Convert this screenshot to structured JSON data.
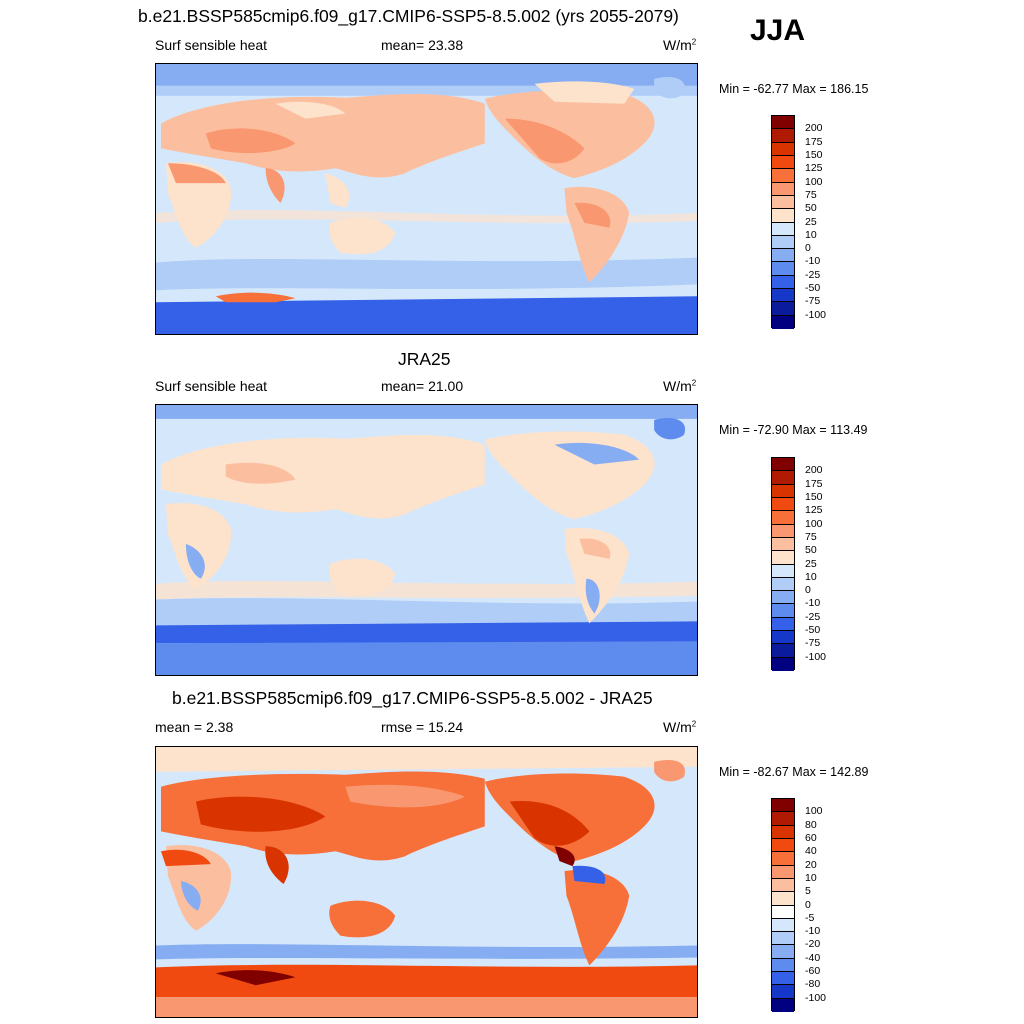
{
  "season": "JJA",
  "panels": [
    {
      "title": "b.e21.BSSP585cmip6.f09_g17.CMIP6-SSP5-8.5.002 (yrs 2055-2079)",
      "left_label": "Surf sensible heat",
      "center_label": "mean=  23.38",
      "units": "W/m",
      "units_sup": "2",
      "minmax": "Min = -62.77 Max = 186.15",
      "colorbar": {
        "ticks": [
          "200",
          "175",
          "150",
          "125",
          "100",
          "75",
          "50",
          "25",
          "10",
          "0",
          "-10",
          "-25",
          "-50",
          "-75",
          "-100"
        ],
        "colors": [
          "#800000",
          "#b01a00",
          "#d93300",
          "#f04a10",
          "#f7703a",
          "#f99870",
          "#fbbf9f",
          "#fde2cc",
          "#d5e8fb",
          "#b0cdf7",
          "#86acf2",
          "#5d8bee",
          "#3560e8",
          "#1638c8",
          "#0a1c9c",
          "#000080"
        ]
      }
    },
    {
      "title": "JRA25",
      "left_label": "Surf sensible heat",
      "center_label": "mean=  21.00",
      "units": "W/m",
      "units_sup": "2",
      "minmax": "Min = -72.90 Max = 113.49",
      "colorbar": {
        "ticks": [
          "200",
          "175",
          "150",
          "125",
          "100",
          "75",
          "50",
          "25",
          "10",
          "0",
          "-10",
          "-25",
          "-50",
          "-75",
          "-100"
        ],
        "colors": [
          "#800000",
          "#b01a00",
          "#d93300",
          "#f04a10",
          "#f7703a",
          "#f99870",
          "#fbbf9f",
          "#fde2cc",
          "#d5e8fb",
          "#b0cdf7",
          "#86acf2",
          "#5d8bee",
          "#3560e8",
          "#1638c8",
          "#0a1c9c",
          "#000080"
        ]
      }
    },
    {
      "title": "b.e21.BSSP585cmip6.f09_g17.CMIP6-SSP5-8.5.002 - JRA25",
      "left_label": "mean =   2.38",
      "center_label": "rmse =  15.24",
      "units": "W/m",
      "units_sup": "2",
      "minmax": "Min = -82.67 Max = 142.89",
      "colorbar": {
        "ticks": [
          "100",
          "80",
          "60",
          "40",
          "20",
          "10",
          "5",
          "0",
          "-5",
          "-10",
          "-20",
          "-40",
          "-60",
          "-80",
          "-100"
        ],
        "colors": [
          "#800000",
          "#b01a00",
          "#d93300",
          "#f04a10",
          "#f7703a",
          "#f99870",
          "#fbbf9f",
          "#fde2cc",
          "#ffffff",
          "#d5e8fb",
          "#b0cdf7",
          "#86acf2",
          "#5d8bee",
          "#3560e8",
          "#1638c8",
          "#000080"
        ]
      }
    }
  ]
}
